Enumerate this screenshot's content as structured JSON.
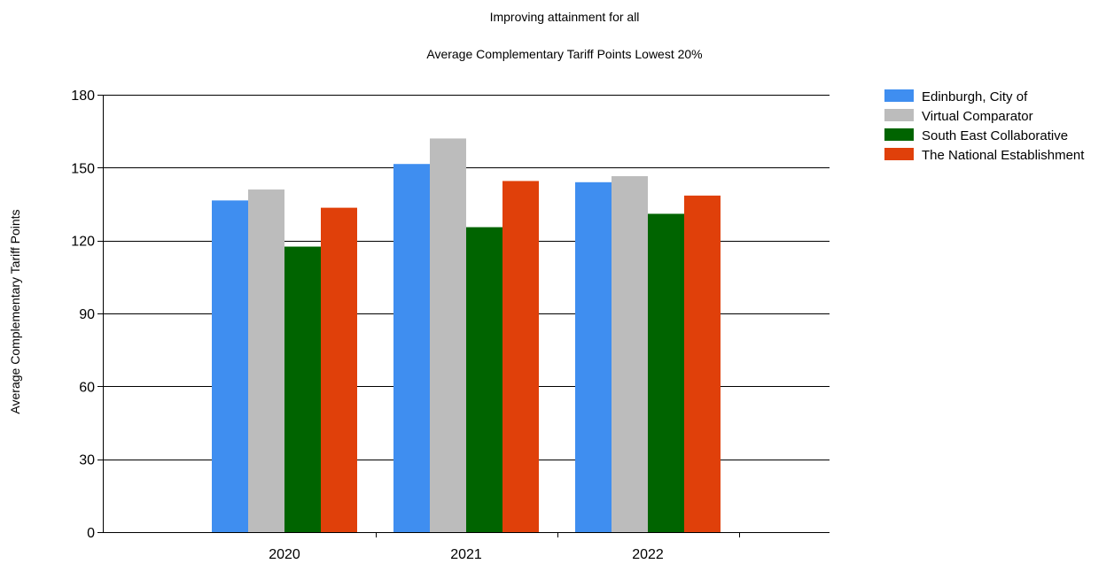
{
  "chart_data": {
    "type": "bar",
    "title": "Improving attainment for all",
    "subtitle": "Average Complementary Tariff Points Lowest 20%",
    "xlabel": "",
    "ylabel": "Average Complementary Tariff Points",
    "categories": [
      "2020",
      "2021",
      "2022"
    ],
    "x_axis_range": [
      2019,
      2023
    ],
    "ylim": [
      0,
      180
    ],
    "yticks": [
      0,
      30,
      60,
      90,
      120,
      150,
      180
    ],
    "grid": "horizontal",
    "legend_position": "top-right",
    "series": [
      {
        "name": "Edinburgh, City of",
        "color": "#3f8ef0",
        "values": [
          136.5,
          151.5,
          144
        ]
      },
      {
        "name": "Virtual Comparator",
        "color": "#bcbcbc",
        "values": [
          141,
          162,
          146.5
        ]
      },
      {
        "name": "South East Collaborative",
        "color": "#006400",
        "values": [
          117.5,
          125.5,
          131
        ]
      },
      {
        "name": "The National Establishment",
        "color": "#e0400a",
        "values": [
          133.5,
          144.5,
          138.5
        ]
      }
    ]
  }
}
